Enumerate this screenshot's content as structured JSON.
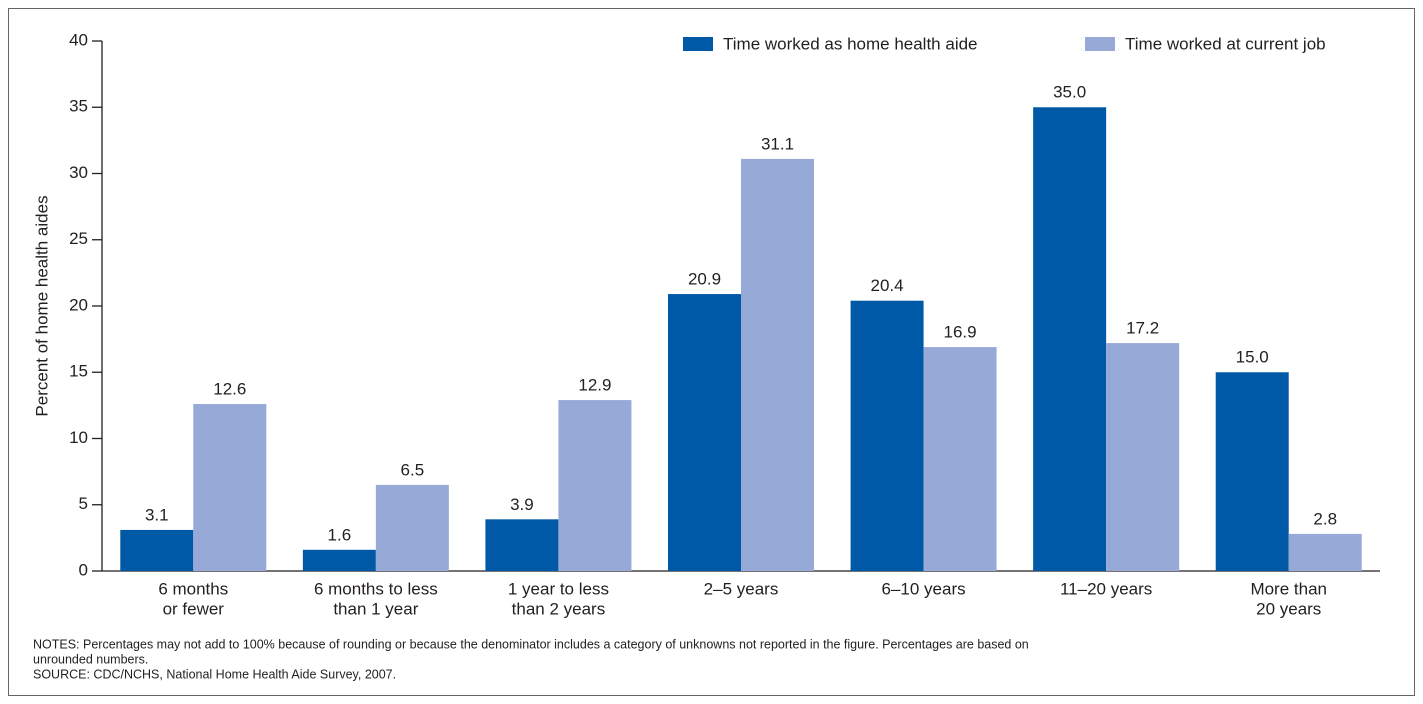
{
  "chart_data": {
    "type": "bar",
    "y_axis_label": "Percent of home health aides",
    "categories": [
      [
        "6 months",
        "or fewer"
      ],
      [
        "6 months to less",
        "than 1 year"
      ],
      [
        "1 year to less",
        "than 2 years"
      ],
      [
        "2–5 years"
      ],
      [
        "6–10 years"
      ],
      [
        "11–20 years"
      ],
      [
        "More than",
        "20 years"
      ]
    ],
    "series": [
      {
        "name": "Time worked as home health aide",
        "color": "#0059a6",
        "values": [
          3.1,
          1.6,
          3.9,
          20.9,
          20.4,
          35,
          15
        ],
        "value_labels": [
          "3.1",
          "1.6",
          "3.9",
          "20.9",
          "20.4",
          "35.0",
          "15.0"
        ]
      },
      {
        "name": "Time worked at current job",
        "color": "#97a9d7",
        "values": [
          12.6,
          6.5,
          12.9,
          31.1,
          16.9,
          17.2,
          2.8
        ],
        "value_labels": [
          "12.6",
          "6.5",
          "12.9",
          "31.1",
          "16.9",
          "17.2",
          "2.8"
        ]
      }
    ],
    "ylim": [
      0,
      40
    ],
    "yticks": [
      0,
      5,
      10,
      15,
      20,
      25,
      30,
      35,
      40
    ],
    "legend": "top-right",
    "notes": [
      "NOTES: Percentages may not add to 100% because of rounding or because the denominator includes a category of unknowns not reported in the figure. Percentages are based on",
      "unrounded numbers.",
      "SOURCE: CDC/NCHS, National Home Health Aide Survey, 2007."
    ]
  }
}
